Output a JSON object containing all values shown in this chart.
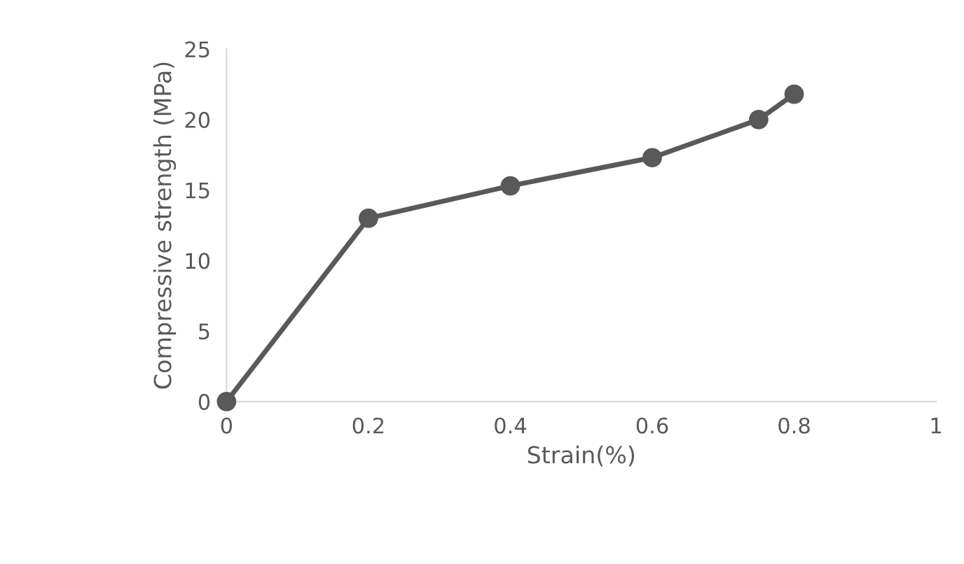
{
  "chart_data": {
    "type": "line",
    "xlabel": "Strain(%)",
    "ylabel": "Compressive strength (MPa)",
    "x": [
      0,
      0.2,
      0.4,
      0.6,
      0.75,
      0.8
    ],
    "series": [
      {
        "color": "#595959",
        "values": [
          0,
          13,
          15.3,
          17.3,
          20,
          21.8
        ]
      }
    ],
    "xlim": [
      0,
      1
    ],
    "xticks": [
      0,
      0.2,
      0.4,
      0.6,
      0.8,
      1
    ],
    "ylim": [
      0,
      25
    ],
    "yticks": [
      0,
      5,
      10,
      15,
      20,
      25
    ],
    "marker": "circle",
    "line_style": "solid",
    "grid": false,
    "legend": false
  }
}
